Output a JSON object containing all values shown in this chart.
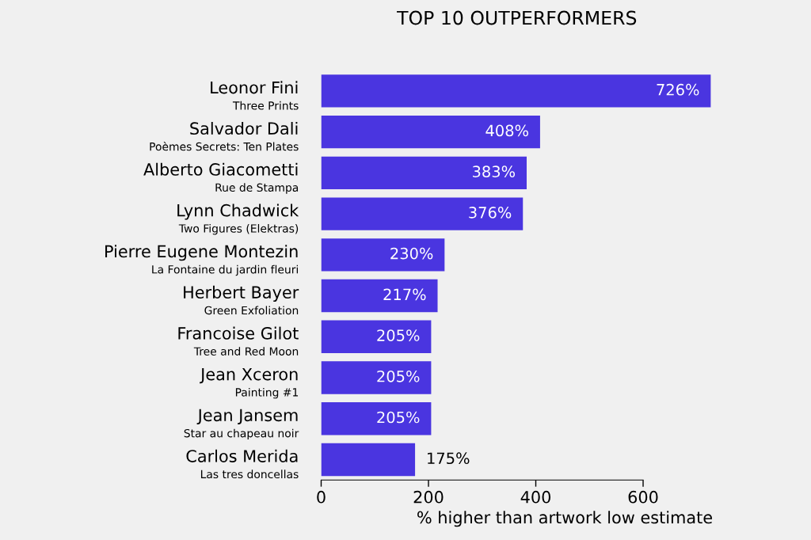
{
  "chart_data": {
    "type": "bar",
    "orientation": "horizontal",
    "title": "TOP 10 OUTPERFORMERS",
    "xlabel": "% higher than artwork low estimate",
    "categories": [
      "Leonor Fini\nThree Prints",
      "Salvador Dali\nPoèmes Secrets: Ten Plates",
      "Alberto Giacometti\nRue de Stampa",
      "Lynn Chadwick\nTwo Figures (Elektras)",
      "Pierre Eugene Montezin\nLa Fontaine du jardin fleuri",
      "Herbert Bayer\nGreen Exfoliation",
      "Francoise Gilot\nTree and Red Moon",
      "Jean Xceron\nPainting #1",
      "Jean Jansem\nStar au chapeau noir",
      "Carlos Merida\nLas tres doncellas"
    ],
    "values": [
      726,
      408,
      383,
      376,
      230,
      217,
      205,
      205,
      205,
      175
    ],
    "value_labels": [
      "726%",
      "408%",
      "383%",
      "376%",
      "230%",
      "217%",
      "205%",
      "205%",
      "205%",
      "175%"
    ],
    "color": "#4a35e0",
    "xlim": [
      0,
      730
    ],
    "xticks": [
      0,
      200,
      400,
      600
    ],
    "grid": false
  }
}
